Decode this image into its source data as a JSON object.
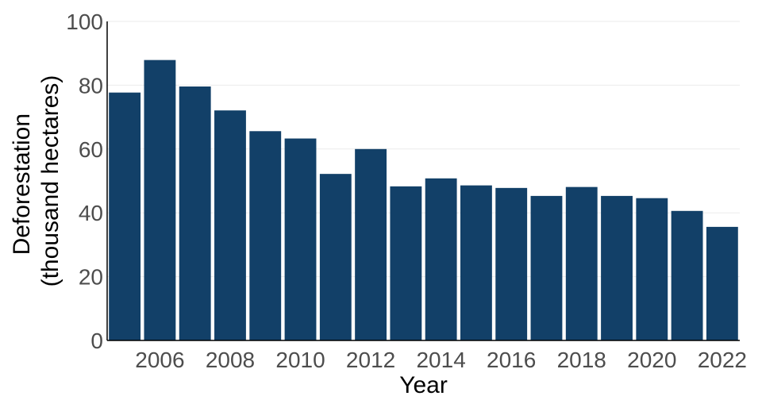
{
  "chart_data": {
    "type": "bar",
    "x": [
      2005,
      2006,
      2007,
      2008,
      2009,
      2010,
      2011,
      2012,
      2013,
      2014,
      2015,
      2016,
      2017,
      2018,
      2019,
      2020,
      2021,
      2022
    ],
    "values": [
      77.7,
      87.9,
      79.6,
      72.1,
      65.6,
      63.3,
      52.2,
      60.0,
      48.3,
      50.8,
      48.6,
      47.8,
      45.3,
      48.1,
      45.3,
      44.6,
      40.6,
      35.6
    ],
    "xticks": [
      "2006",
      "2008",
      "2010",
      "2012",
      "2014",
      "2016",
      "2018",
      "2020",
      "2022"
    ],
    "yticks": [
      "0",
      "20",
      "40",
      "60",
      "80",
      "100"
    ],
    "xlabel": "Year",
    "ylabel_lines": [
      "Deforestation",
      "(thousand hectares)"
    ],
    "ylim": [
      0,
      100
    ],
    "grid": "horizontal",
    "colors": {
      "bar": "#124068",
      "grid": "#ebebeb",
      "axis": "#000000"
    }
  }
}
